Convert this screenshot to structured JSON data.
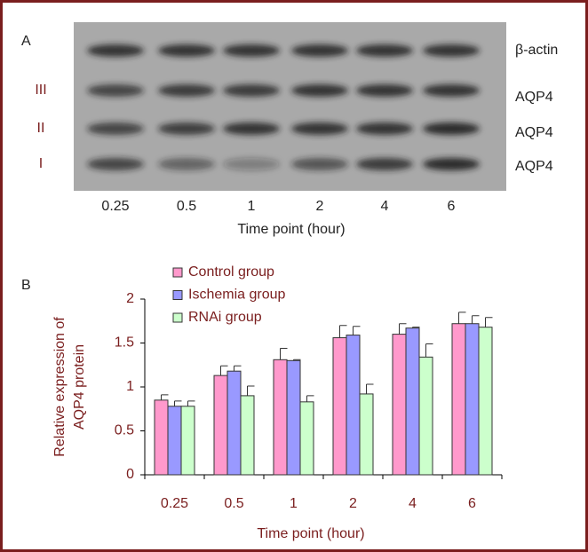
{
  "panel_a": {
    "label": "A",
    "band_labels": [
      "β-actin",
      "AQP4",
      "AQP4",
      "AQP4"
    ],
    "group_labels": [
      "III",
      "II",
      "I"
    ],
    "time_points": [
      "0.25",
      "0.5",
      "1",
      "2",
      "4",
      "6"
    ],
    "xlabel": "Time point (hour)"
  },
  "chart_data": {
    "type": "bar",
    "panel_label": "B",
    "categories": [
      "0.25",
      "0.5",
      "1",
      "2",
      "4",
      "6"
    ],
    "series": [
      {
        "name": "Control group",
        "color": "#ff99cc",
        "values": [
          0.85,
          1.13,
          1.31,
          1.56,
          1.6,
          1.72
        ],
        "errors": [
          0.06,
          0.11,
          0.13,
          0.14,
          0.12,
          0.13
        ]
      },
      {
        "name": "Ischemia group",
        "color": "#9999ff",
        "values": [
          0.78,
          1.18,
          1.3,
          1.59,
          1.67,
          1.72
        ],
        "errors": [
          0.06,
          0.06,
          0.01,
          0.1,
          0.01,
          0.09
        ]
      },
      {
        "name": "RNAi group",
        "color": "#ccffcc",
        "values": [
          0.78,
          0.9,
          0.83,
          0.92,
          1.34,
          1.68
        ],
        "errors": [
          0.06,
          0.11,
          0.07,
          0.11,
          0.15,
          0.11
        ]
      }
    ],
    "ylabel": [
      "Relative expression of",
      "AQP4 protein"
    ],
    "xlabel": "Time point (hour)",
    "ylim": [
      0,
      2
    ],
    "yticks": [
      0,
      0.5,
      1,
      1.5,
      2
    ]
  }
}
